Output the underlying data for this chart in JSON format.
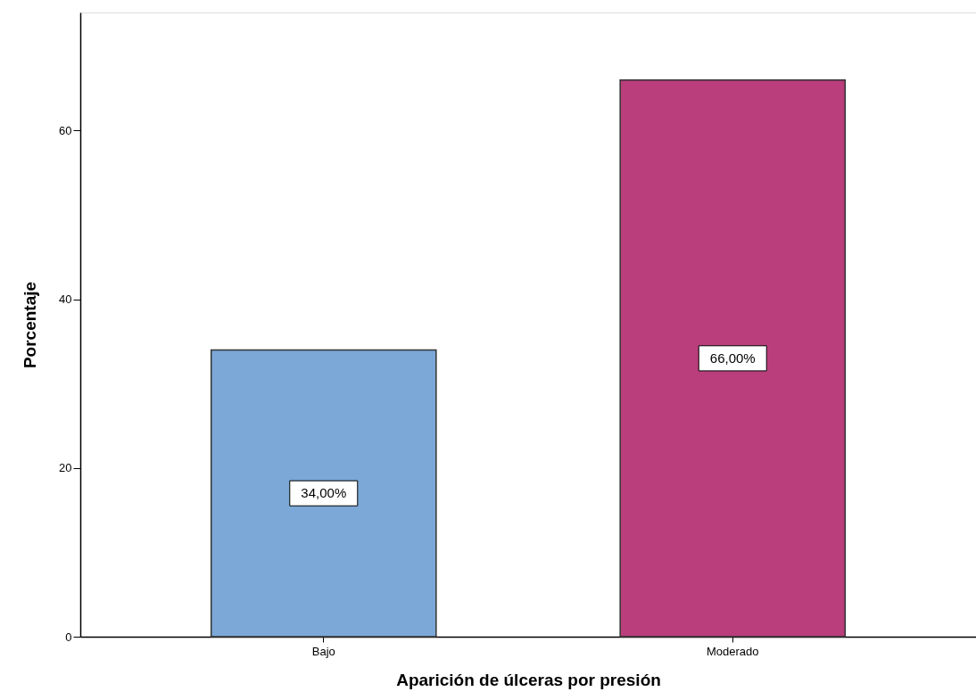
{
  "chart_data": {
    "type": "bar",
    "xlabel": "Aparición de úlceras por presión",
    "ylabel": "Porcentaje",
    "categories": [
      "Bajo",
      "Moderado"
    ],
    "values": [
      34,
      66
    ],
    "colors": [
      "#7ba8d6",
      "#b93e7b"
    ],
    "value_labels": [
      "34,00%",
      "66,00%"
    ],
    "ylim": [
      0,
      74
    ],
    "yticks": [
      0,
      20,
      40,
      60
    ],
    "grid": false
  }
}
